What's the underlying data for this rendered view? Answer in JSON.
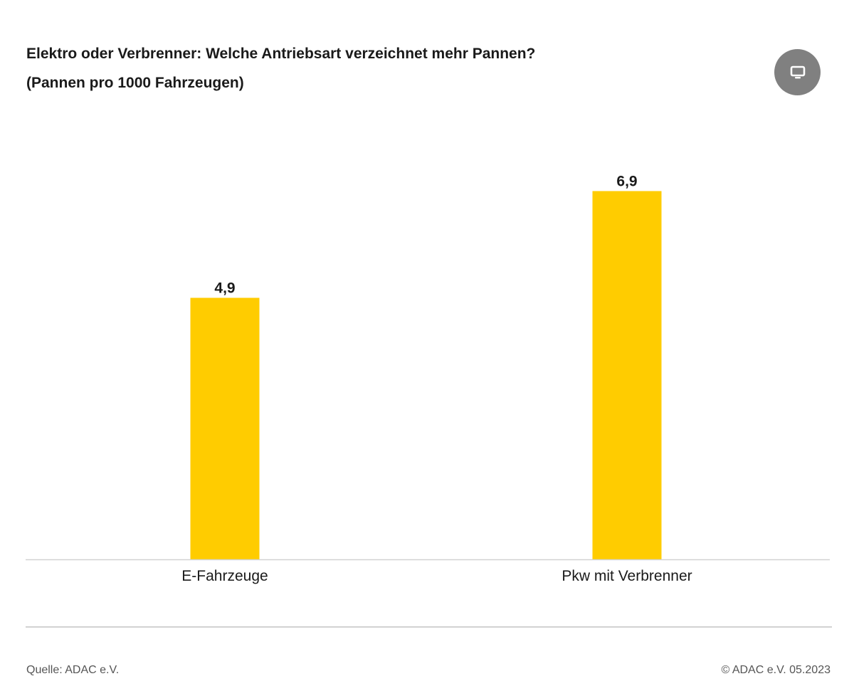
{
  "header": {
    "title": "Elektro oder Verbrenner: Welche Antriebsart verzeichnet mehr Pannen?",
    "subtitle": "(Pannen pro 1000 Fahrzeugen)",
    "display_button_icon": "monitor-icon"
  },
  "chart_data": {
    "type": "bar",
    "title": "Elektro oder Verbrenner: Welche Antriebsart verzeichnet mehr Pannen?",
    "subtitle": "(Pannen pro 1000 Fahrzeugen)",
    "categories": [
      "E-Fahrzeuge",
      "Pkw mit Verbrenner"
    ],
    "values": [
      4.9,
      6.9
    ],
    "value_labels": [
      "4,9",
      "6,9"
    ],
    "bar_color": "#ffcc00",
    "ylim": [
      0,
      8
    ],
    "grid": false,
    "legend": "none",
    "xlabel": "",
    "ylabel": ""
  },
  "footer": {
    "source": "Quelle: ADAC e.V.",
    "copyright": "© ADAC e.V. 05.2023"
  },
  "colors": {
    "bar": "#ffcc00",
    "axis": "#d2d2d2",
    "button": "#808080",
    "text": "#1a1a1a",
    "footer_text": "#555555"
  }
}
